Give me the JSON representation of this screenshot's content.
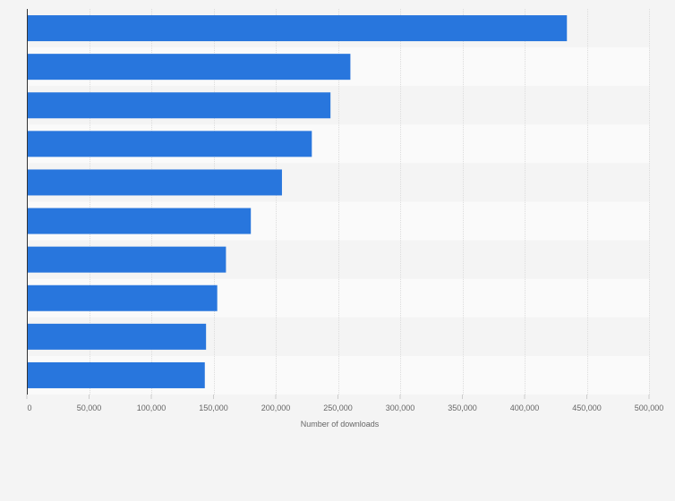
{
  "chart_data": {
    "type": "bar",
    "orientation": "horizontal",
    "categories": [
      "",
      "",
      "",
      "",
      "",
      "",
      "",
      "",
      "",
      ""
    ],
    "values": [
      434000,
      260000,
      244000,
      229000,
      205000,
      180000,
      160000,
      153000,
      144000,
      143000
    ],
    "xlabel": "Number of downloads",
    "ylabel": "",
    "xlim": [
      0,
      500000
    ],
    "xticks": [
      0,
      50000,
      100000,
      150000,
      200000,
      250000,
      300000,
      350000,
      400000,
      450000,
      500000
    ],
    "xtick_labels": [
      "0",
      "50,000",
      "100,000",
      "150,000",
      "200,000",
      "250,000",
      "300,000",
      "350,000",
      "400,000",
      "450,000",
      "500,000"
    ],
    "grid": "vertical",
    "legend": "none",
    "colors": {
      "bar": "#2876dd",
      "band_light": "#fafafa",
      "band_dark": "#f4f4f4",
      "grid": "#dcdcdc",
      "axis": "#333333",
      "text": "#666666"
    }
  }
}
